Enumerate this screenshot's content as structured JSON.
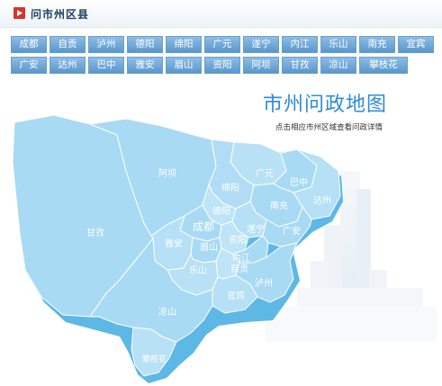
{
  "header": {
    "title": "问市州区县",
    "icon": "play-icon",
    "accent": "#d8332c"
  },
  "buttons_row1": [
    "成都",
    "自贡",
    "泸州",
    "德阳",
    "绵阳",
    "广元",
    "遂宁",
    "内江",
    "乐山",
    "南充",
    "宜宾"
  ],
  "buttons_row2": [
    "广安",
    "达州",
    "巴中",
    "雅安",
    "眉山",
    "资阳",
    "阿坝",
    "甘孜",
    "凉山",
    "攀枝花"
  ],
  "map": {
    "title": "市州问政地图",
    "subtitle": "点击相应市州区域查看问政详情",
    "labels": {
      "aba": "阿坝",
      "ganzi": "甘孜",
      "chengdu": "成都",
      "deyang": "德阳",
      "mianyang": "绵阳",
      "guangyuan": "广元",
      "bazhong": "巴中",
      "dazhou": "达州",
      "nanchong": "南充",
      "suining": "遂宁",
      "guangan": "广安",
      "ziyang": "资阳",
      "yaan": "雅安",
      "meishan": "眉山",
      "neijiang": "内江",
      "leshan": "乐山",
      "zigong": "自贡",
      "luzhou": "泸州",
      "yibin": "宜宾",
      "liangshan": "凉山",
      "panzhihua": "攀枝花"
    },
    "colors": {
      "map_fill": "#a8daf4",
      "map_light": "#c4e7f8",
      "border": "#ffffff",
      "shadow": "#5db8e6"
    }
  }
}
